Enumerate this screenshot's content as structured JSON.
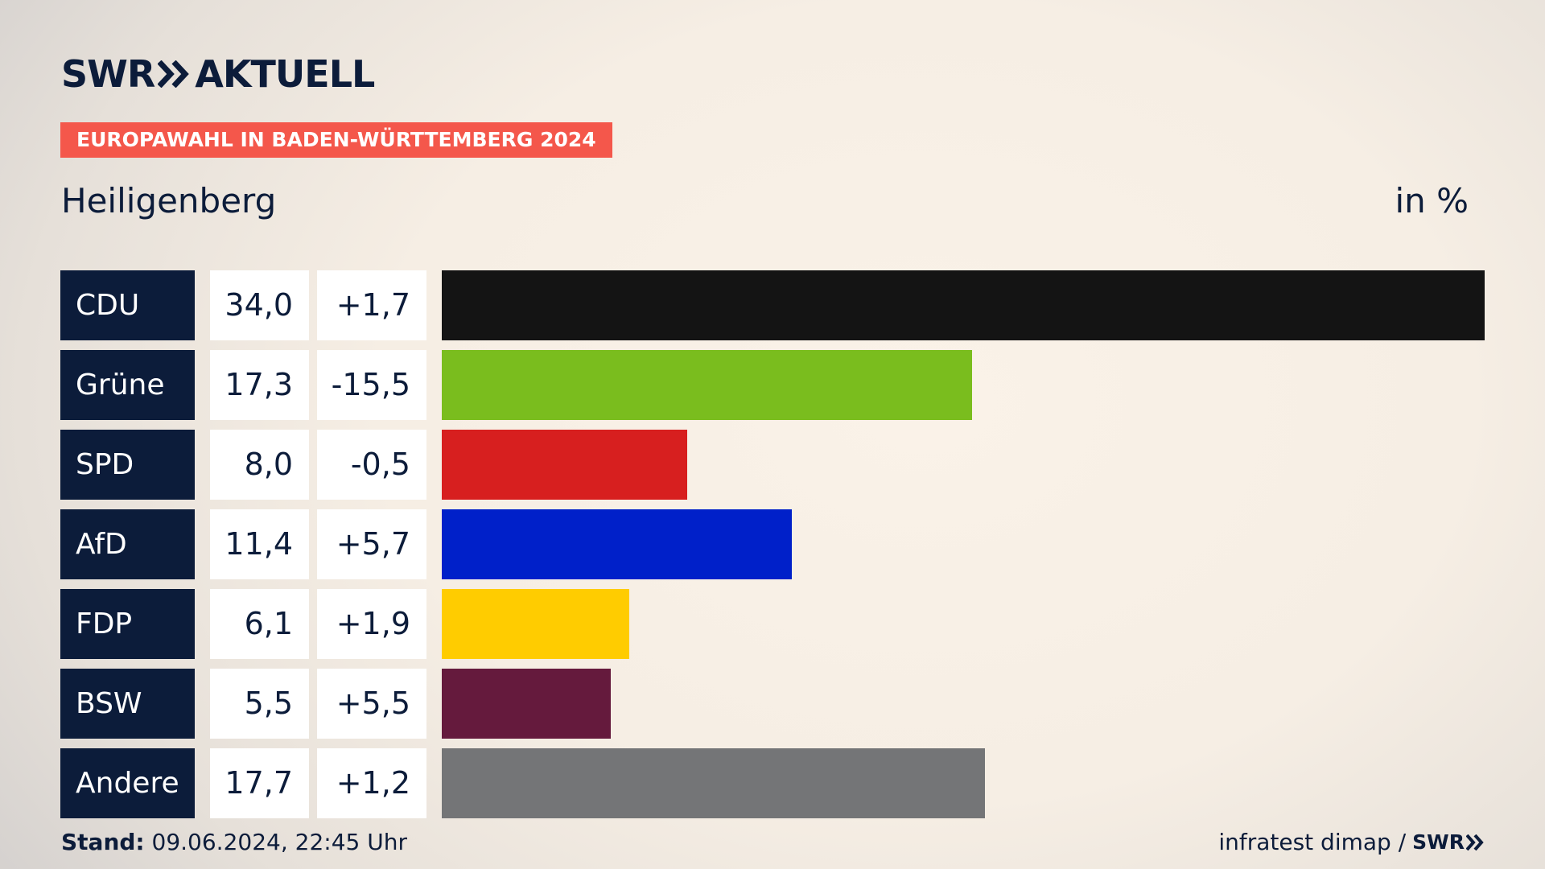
{
  "brand": {
    "name_left": "SWR",
    "name_right": "AKTUELL"
  },
  "header": {
    "badge": "EUROPAWAHL IN BADEN-WÜRTTEMBERG 2024",
    "place": "Heiligenberg",
    "unit": "in %"
  },
  "colors": {
    "badge": "#f4574b",
    "label_bg": "#0c1c3a"
  },
  "chart_data": {
    "type": "bar",
    "orientation": "horizontal",
    "categories": [
      "CDU",
      "Grüne",
      "SPD",
      "AfD",
      "FDP",
      "BSW",
      "Andere"
    ],
    "values": [
      34.0,
      17.3,
      8.0,
      11.4,
      6.1,
      5.5,
      17.7
    ],
    "values_display": [
      "34,0",
      "17,3",
      "8,0",
      "11,4",
      "6,1",
      "5,5",
      "17,7"
    ],
    "changes": [
      1.7,
      -15.5,
      -0.5,
      5.7,
      1.9,
      5.5,
      1.2
    ],
    "changes_display": [
      "+1,7",
      "-15,5",
      "-0,5",
      "+5,7",
      "+1,9",
      "+5,5",
      "+1,2"
    ],
    "colors": [
      "#141414",
      "#7abd1e",
      "#d71f1f",
      "#0020c9",
      "#ffcc00",
      "#651a3d",
      "#747577"
    ],
    "xlim": [
      0,
      34.0
    ],
    "grid": false
  },
  "footer": {
    "stand_label": "Stand:",
    "stand_value": " 09.06.2024, 22:45 Uhr",
    "source": "infratest dimap /",
    "source_logo": "SWR"
  }
}
